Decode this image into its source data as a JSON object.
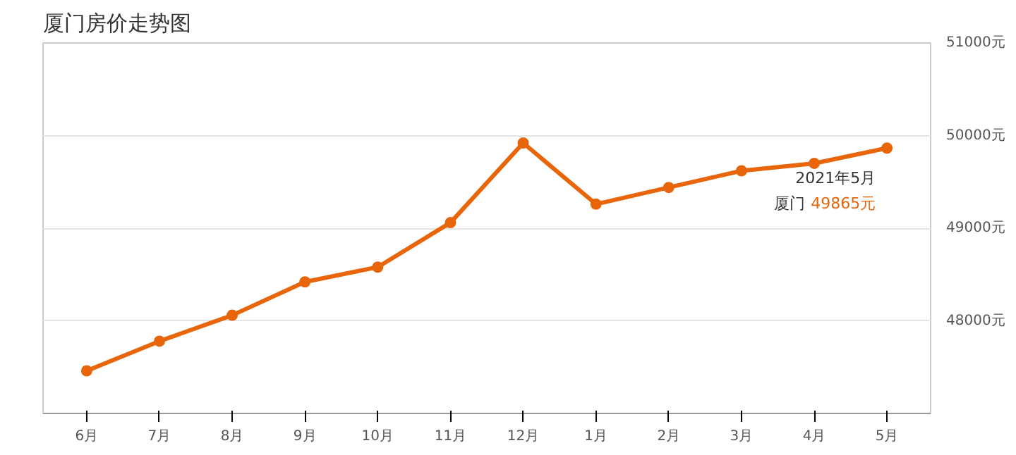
{
  "chart_data": {
    "type": "line",
    "title": "厦门房价走势图",
    "categories": [
      "6月",
      "7月",
      "8月",
      "9月",
      "10月",
      "11月",
      "12月",
      "1月",
      "2月",
      "3月",
      "4月",
      "5月"
    ],
    "series": [
      {
        "name": "厦门",
        "color": "#e8650a",
        "values": [
          47460,
          47780,
          48060,
          48420,
          48580,
          49060,
          49920,
          49260,
          49440,
          49620,
          49700,
          49865
        ],
        "value_labels": [
          null,
          null,
          null,
          null,
          null,
          null,
          null,
          null,
          null,
          null,
          null,
          "49865元"
        ]
      }
    ],
    "annotations": [
      {
        "text": "2021年5月",
        "x": "5月",
        "y": 49865
      }
    ],
    "ylim": [
      47000,
      51000
    ],
    "yticks": [
      {
        "value": 48000,
        "label": "48000元"
      },
      {
        "value": 49000,
        "label": "49000元"
      },
      {
        "value": 50000,
        "label": "50000元"
      },
      {
        "value": 51000,
        "label": "51000元"
      }
    ],
    "grid": "y",
    "marker": "circle",
    "line_style": "solid"
  }
}
